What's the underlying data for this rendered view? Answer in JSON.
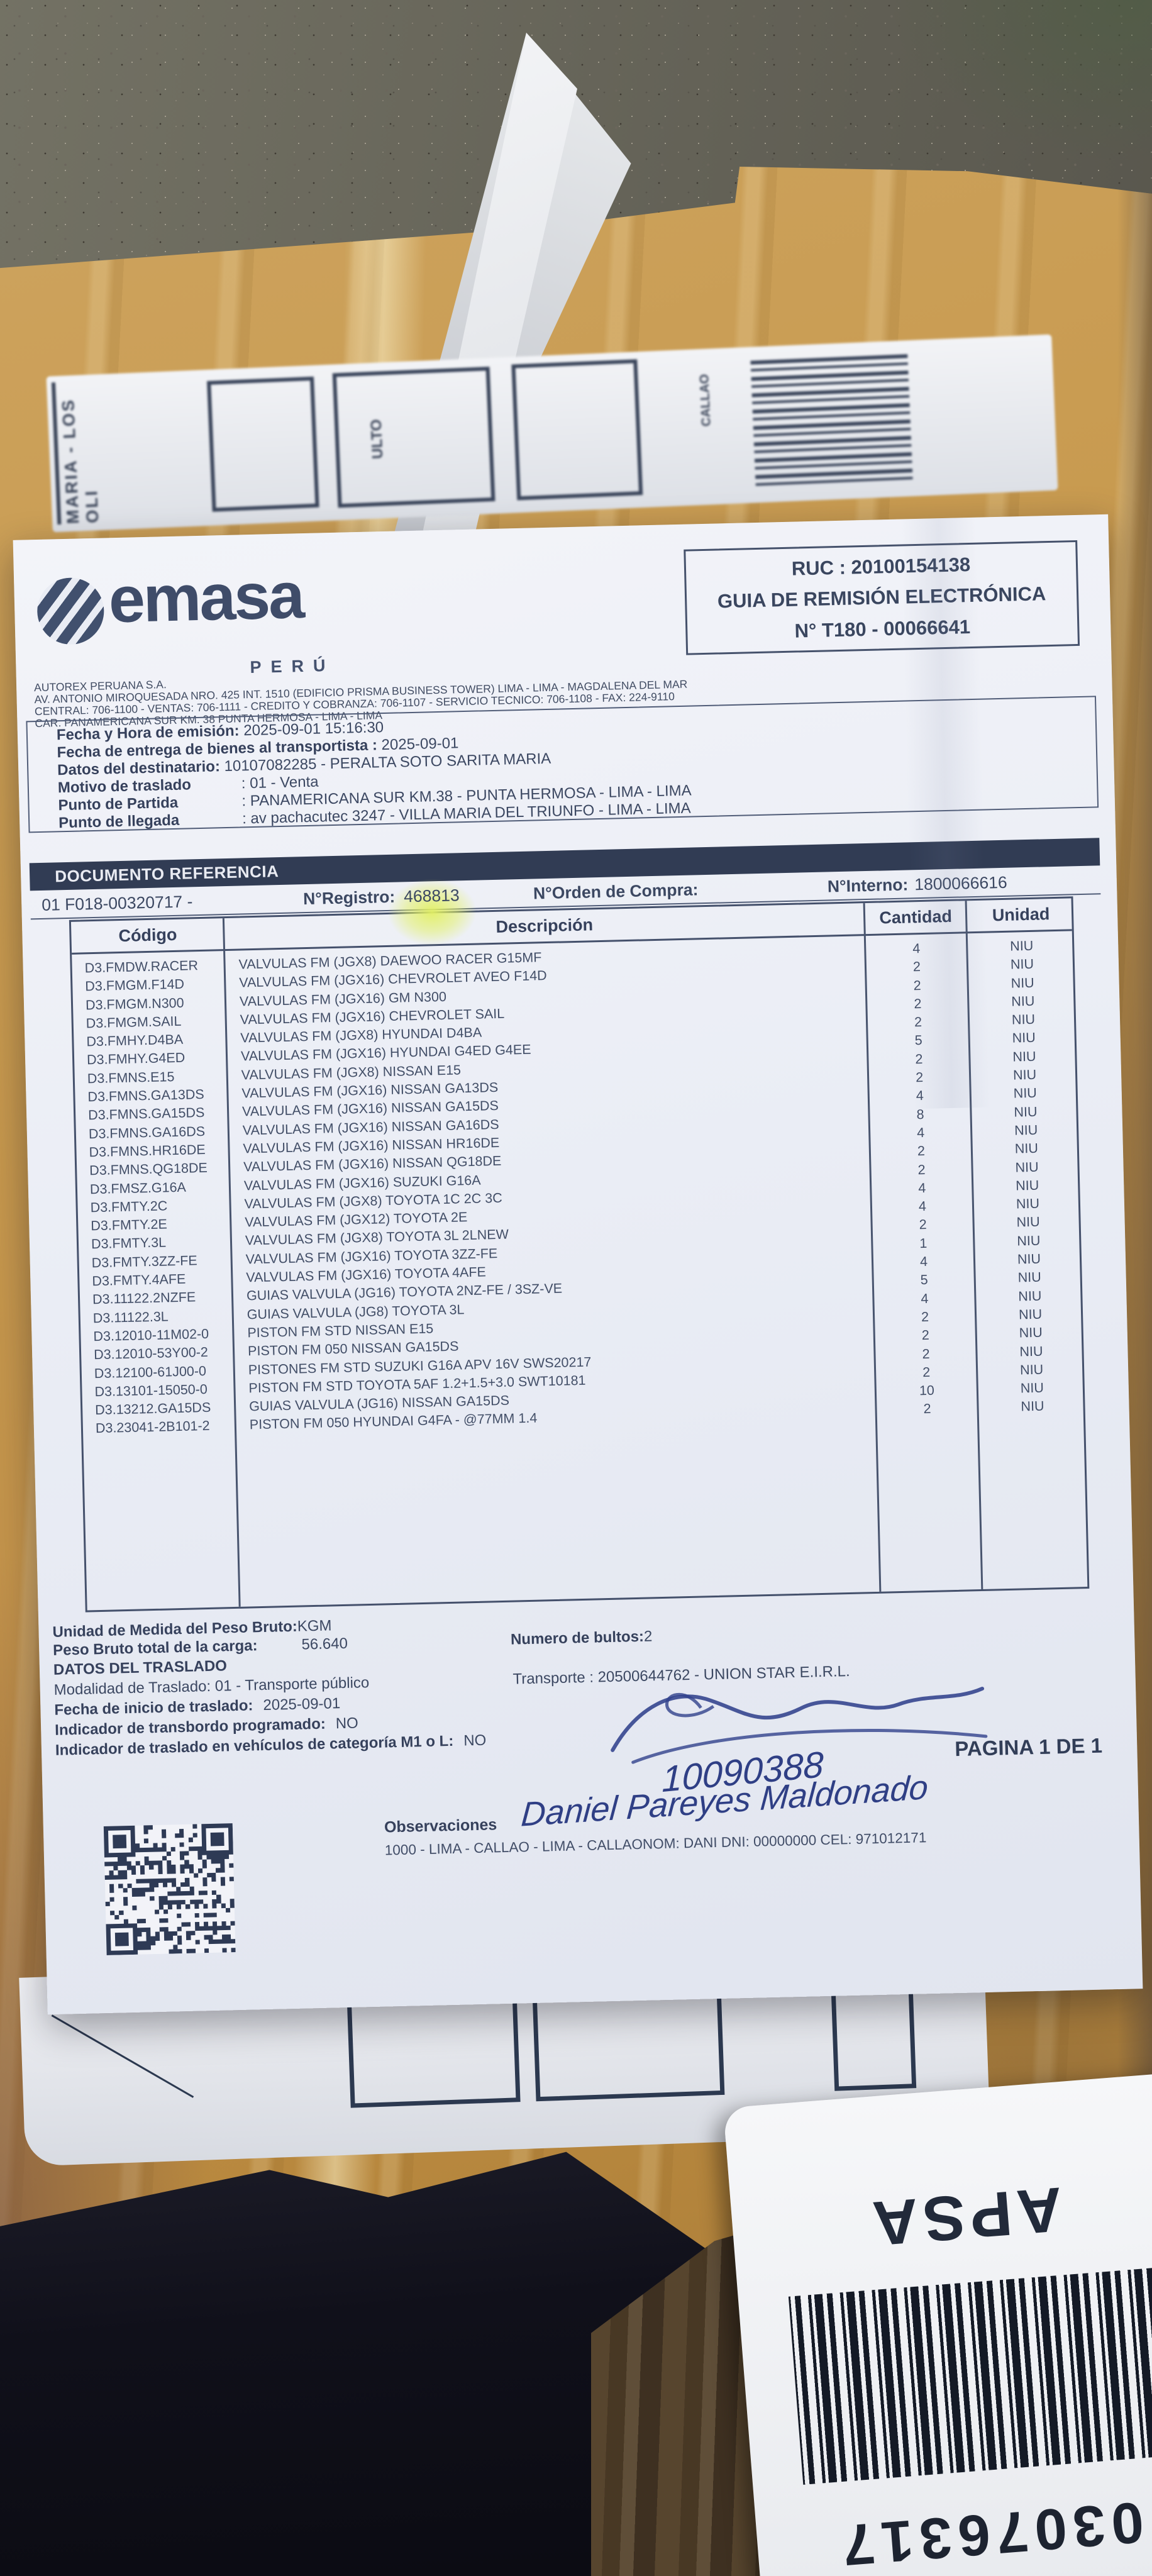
{
  "colors": {
    "accent_navy": "#333e58",
    "highlight_marker": "#e4ef6f",
    "ink_blue": "#2f3f85",
    "package_tan": "#c69a52"
  },
  "header": {
    "brand": "emasa",
    "brand_sub": "PERÚ",
    "company_lines": [
      "AUTOREX PERUANA S.A.",
      "AV. ANTONIO MIROQUESADA NRO. 425 INT. 1510 (EDIFICIO PRISMA BUSINESS TOWER) LIMA - LIMA - MAGDALENA DEL MAR",
      "CENTRAL: 706-1100 - VENTAS: 706-1111 - CREDITO Y COBRANZA: 706-1107 - SERVICIO TECNICO: 706-1108 - FAX: 224-9110",
      "CAR. PANAMERICANA SUR KM. 38 PUNTA HERMOSA - LIMA - LIMA"
    ]
  },
  "ruc_box": {
    "ruc": "RUC : 20100154138",
    "doc_type": "GUIA DE REMISIÓN ELECTRÓNICA",
    "doc_number": "N° T180 - 00066641"
  },
  "info": {
    "rows": [
      {
        "l": "Fecha y Hora de emisión:",
        "v": "2025-09-01 15:16:30"
      },
      {
        "l": "Fecha de entrega de bienes al transportista :",
        "v": "2025-09-01"
      },
      {
        "l": "Datos del destinatario:",
        "v": "10107082285 - PERALTA SOTO SARITA MARIA"
      },
      {
        "l": "Motivo de traslado",
        "v": ": 01 - Venta"
      },
      {
        "l": "Punto de Partida",
        "v": ": PANAMERICANA SUR KM.38 - PUNTA HERMOSA - LIMA - LIMA"
      },
      {
        "l": "Punto de llegada",
        "v": ": av pachacutec 3247 - VILLA MARIA DEL TRIUNFO - LIMA - LIMA"
      }
    ]
  },
  "reference": {
    "section_title": "DOCUMENTO REFERENCIA",
    "doc_code": "01  F018-00320717 -",
    "registro_label": "N°Registro:",
    "registro_value": "468813",
    "orden_label": "N°Orden de Compra:",
    "interno_label": "N°Interno:",
    "interno_value": "1800066616"
  },
  "table": {
    "headers": [
      "Código",
      "Descripción",
      "Cantidad",
      "Unidad"
    ],
    "items": [
      {
        "code": "D3.FMDW.RACER",
        "desc": "VALVULAS FM (JGX8)  DAEWOO RACER G15MF",
        "qty": "4",
        "unit": "NIU"
      },
      {
        "code": "D3.FMGM.F14D",
        "desc": "VALVULAS FM (JGX16) CHEVROLET AVEO F14D",
        "qty": "2",
        "unit": "NIU"
      },
      {
        "code": "D3.FMGM.N300",
        "desc": "VALVULAS FM (JGX16) GM N300",
        "qty": "2",
        "unit": "NIU"
      },
      {
        "code": "D3.FMGM.SAIL",
        "desc": "VALVULAS FM (JGX16) CHEVROLET SAIL",
        "qty": "2",
        "unit": "NIU"
      },
      {
        "code": "D3.FMHY.D4BA",
        "desc": "VALVULAS FM (JGX8)  HYUNDAI D4BA",
        "qty": "2",
        "unit": "NIU"
      },
      {
        "code": "D3.FMHY.G4ED",
        "desc": "VALVULAS FM (JGX16) HYUNDAI G4ED G4EE",
        "qty": "5",
        "unit": "NIU"
      },
      {
        "code": "D3.FMNS.E15",
        "desc": "VALVULAS FM (JGX8) NISSAN E15",
        "qty": "2",
        "unit": "NIU"
      },
      {
        "code": "D3.FMNS.GA13DS",
        "desc": "VALVULAS FM (JGX16) NISSAN GA13DS",
        "qty": "2",
        "unit": "NIU"
      },
      {
        "code": "D3.FMNS.GA15DS",
        "desc": "VALVULAS FM (JGX16) NISSAN GA15DS",
        "qty": "4",
        "unit": "NIU"
      },
      {
        "code": "D3.FMNS.GA16DS",
        "desc": "VALVULAS FM (JGX16) NISSAN GA16DS",
        "qty": "8",
        "unit": "NIU"
      },
      {
        "code": "D3.FMNS.HR16DE",
        "desc": "VALVULAS FM (JGX16) NISSAN HR16DE",
        "qty": "4",
        "unit": "NIU"
      },
      {
        "code": "D3.FMNS.QG18DE",
        "desc": "VALVULAS FM (JGX16) NISSAN QG18DE",
        "qty": "2",
        "unit": "NIU"
      },
      {
        "code": "D3.FMSZ.G16A",
        "desc": "VALVULAS FM (JGX16) SUZUKI G16A",
        "qty": "2",
        "unit": "NIU"
      },
      {
        "code": "D3.FMTY.2C",
        "desc": "VALVULAS FM (JGX8) TOYOTA 1C 2C 3C",
        "qty": "4",
        "unit": "NIU"
      },
      {
        "code": "D3.FMTY.2E",
        "desc": "VALVULAS FM (JGX12) TOYOTA 2E",
        "qty": "4",
        "unit": "NIU"
      },
      {
        "code": "D3.FMTY.3L",
        "desc": "VALVULAS FM (JGX8) TOYOTA 3L 2LNEW",
        "qty": "2",
        "unit": "NIU"
      },
      {
        "code": "D3.FMTY.3ZZ-FE",
        "desc": "VALVULAS FM (JGX16) TOYOTA 3ZZ-FE",
        "qty": "1",
        "unit": "NIU"
      },
      {
        "code": "D3.FMTY.4AFE",
        "desc": "VALVULAS FM (JGX16) TOYOTA 4AFE",
        "qty": "4",
        "unit": "NIU"
      },
      {
        "code": "D3.11122.2NZFE",
        "desc": "GUIAS VALVULA (JG16) TOYOTA 2NZ-FE  / 3SZ-VE",
        "qty": "5",
        "unit": "NIU"
      },
      {
        "code": "D3.11122.3L",
        "desc": "GUIAS VALVULA (JG8) TOYOTA 3L",
        "qty": "4",
        "unit": "NIU"
      },
      {
        "code": "D3.12010-11M02-0",
        "desc": "PISTON FM STD NISSAN E15",
        "qty": "2",
        "unit": "NIU"
      },
      {
        "code": "D3.12010-53Y00-2",
        "desc": "PISTON FM 050 NISSAN GA15DS",
        "qty": "2",
        "unit": "NIU"
      },
      {
        "code": "D3.12100-61J00-0",
        "desc": "PISTONES FM STD SUZUKI G16A APV  16V SWS20217",
        "qty": "2",
        "unit": "NIU"
      },
      {
        "code": "D3.13101-15050-0",
        "desc": "PISTON FM STD TOYOTA 5AF 1.2+1.5+3.0 SWT10181",
        "qty": "2",
        "unit": "NIU"
      },
      {
        "code": "D3.13212.GA15DS",
        "desc": "GUIAS VALVULA (JG16) NISSAN GA15DS",
        "qty": "10",
        "unit": "NIU"
      },
      {
        "code": "D3.23041-2B101-2",
        "desc": "PISTON FM 050 HYUNDAI G4FA - @77MM  1.4",
        "qty": "2",
        "unit": "NIU"
      }
    ]
  },
  "totals": {
    "peso_unit_label": "Unidad de Medida del Peso Bruto:",
    "peso_unit_value": "KGM",
    "peso_label": "Peso Bruto total de la carga:",
    "peso_value": "56.640",
    "bultos_label": "Numero de bultos:",
    "bultos_value": "2"
  },
  "traslado": {
    "section_title": "DATOS DEL TRASLADO",
    "modalidad_label": "Modalidad de Traslado:",
    "modalidad_value": "01 - Transporte público",
    "transporte_label": "Transporte :",
    "transporte_value": "20500644762 - UNION STAR E.I.R.L.",
    "inicio_label": "Fecha de inicio de traslado:",
    "inicio_value": "2025-09-01",
    "transbordo_label": "Indicador de transbordo programado:",
    "transbordo_value": "NO",
    "categoria_label": "Indicador de traslado en vehículos de categoría M1 o L:",
    "categoria_value": "NO"
  },
  "signature": {
    "code": "10090388",
    "name": "Daniel Pareyes Maldonado"
  },
  "page_label": "PAGINA 1 DE 1",
  "observaciones": {
    "title": "Observaciones",
    "line": "1000 - LIMA - CALLAO - LIMA - CALLAONOM: DANI DNI: 00000000 CEL: 971012171"
  },
  "package": {
    "side_label_fragments": [
      "MARIA - LOS OLI",
      "ULTO",
      "CALLAO"
    ],
    "bottom_label": {
      "carrier": "APSA",
      "barcode_number": "03076317"
    }
  }
}
